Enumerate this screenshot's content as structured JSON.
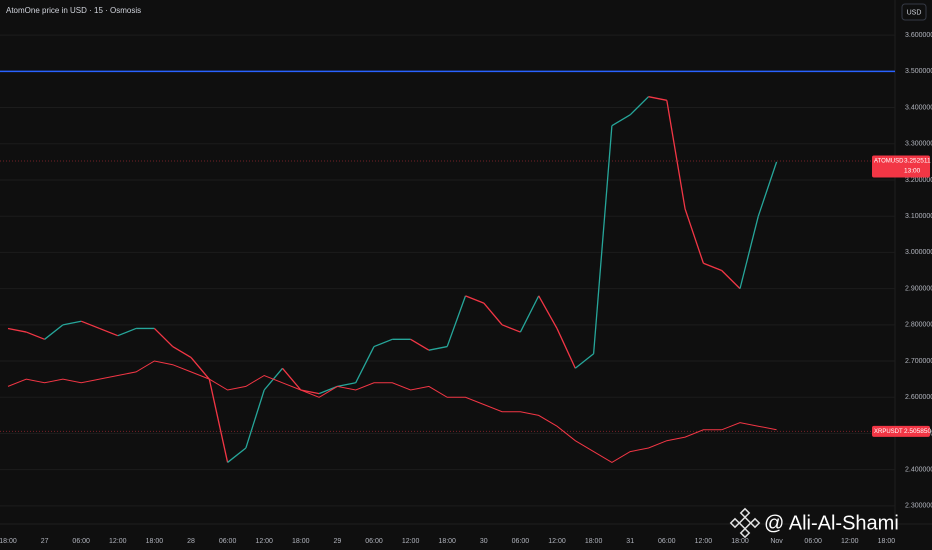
{
  "chart_data": {
    "type": "line",
    "title": "AtomOne price in USD · 15 · Osmosis",
    "currency": "USD",
    "watermark": "@ Ali-Al-Shami",
    "categories": [
      "18:00",
      null,
      "27",
      null,
      "06:00",
      null,
      "12:00",
      null,
      "18:00",
      null,
      "28",
      null,
      "06:00",
      null,
      "12:00",
      null,
      "18:00",
      null,
      "29",
      null,
      "06:00",
      null,
      "12:00",
      null,
      "18:00",
      null,
      "30",
      null,
      "06:00",
      null,
      "12:00",
      null,
      "18:00",
      null,
      "31",
      null,
      "06:00",
      null,
      "12:00",
      null,
      "18:00",
      null,
      "Nov",
      null,
      "06:00",
      null,
      "12:00",
      null,
      "18:00"
    ],
    "series": [
      {
        "name": "ATOMUSD",
        "color": "#f23645",
        "up_color": "#26a69a",
        "down_color": "#f23645",
        "last_price": {
          "value": 3.252511,
          "label": "3.252511"
        },
        "countdown": "13:00",
        "values": [
          2.79,
          2.78,
          2.76,
          2.8,
          2.81,
          2.79,
          2.77,
          2.79,
          2.79,
          2.74,
          2.71,
          2.65,
          2.42,
          2.46,
          2.62,
          2.68,
          2.62,
          2.61,
          2.63,
          2.64,
          2.74,
          2.76,
          2.76,
          2.73,
          2.74,
          2.88,
          2.86,
          2.8,
          2.78,
          2.88,
          2.79,
          2.68,
          2.72,
          3.35,
          3.38,
          3.43,
          3.42,
          3.12,
          2.97,
          2.95,
          2.9,
          3.1,
          3.25,
          null,
          null,
          null,
          null,
          null,
          null
        ]
      },
      {
        "name": "XRPUSDT",
        "color": "#f23645",
        "last_price": {
          "value": 2.50585,
          "label": "2.505850"
        },
        "values": [
          2.63,
          2.65,
          2.64,
          2.65,
          2.64,
          2.65,
          2.66,
          2.67,
          2.7,
          2.69,
          2.67,
          2.65,
          2.62,
          2.63,
          2.66,
          2.64,
          2.62,
          2.6,
          2.63,
          2.62,
          2.64,
          2.64,
          2.62,
          2.63,
          2.6,
          2.6,
          2.58,
          2.56,
          2.56,
          2.55,
          2.52,
          2.48,
          2.45,
          2.42,
          2.45,
          2.46,
          2.48,
          2.49,
          2.51,
          2.51,
          2.53,
          2.52,
          2.51,
          null,
          null,
          null,
          null,
          null,
          null
        ]
      }
    ],
    "hlines": [
      {
        "value": 3.5,
        "color": "#2962ff"
      }
    ],
    "ylim": [
      2.25,
      3.697
    ],
    "yticks": [
      {
        "value": 2.3,
        "label": "2.300000"
      },
      {
        "value": 2.4,
        "label": "2.400000"
      },
      {
        "value": 2.5,
        "label": "2.500000"
      },
      {
        "value": 2.6,
        "label": "2.600000"
      },
      {
        "value": 2.7,
        "label": "2.700000"
      },
      {
        "value": 2.8,
        "label": "2.800000"
      },
      {
        "value": 2.9,
        "label": "2.900000"
      },
      {
        "value": 3.0,
        "label": "3.000000"
      },
      {
        "value": 3.1,
        "label": "3.100000"
      },
      {
        "value": 3.2,
        "label": "3.200000"
      },
      {
        "value": 3.3,
        "label": "3.300000"
      },
      {
        "value": 3.4,
        "label": "3.400000"
      },
      {
        "value": 3.5,
        "label": "3.500000"
      },
      {
        "value": 3.6,
        "label": "3.600000"
      }
    ],
    "grid": true
  }
}
